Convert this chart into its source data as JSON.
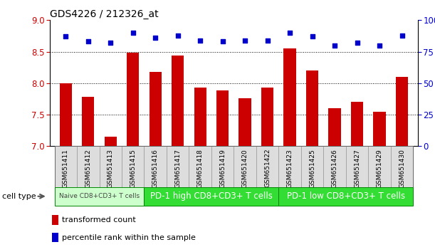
{
  "title": "GDS4226 / 212326_at",
  "samples": [
    "GSM651411",
    "GSM651412",
    "GSM651413",
    "GSM651415",
    "GSM651416",
    "GSM651417",
    "GSM651418",
    "GSM651419",
    "GSM651420",
    "GSM651422",
    "GSM651423",
    "GSM651425",
    "GSM651426",
    "GSM651427",
    "GSM651429",
    "GSM651430"
  ],
  "bar_values": [
    8.0,
    7.78,
    7.15,
    8.48,
    8.18,
    8.44,
    7.93,
    7.88,
    7.76,
    7.93,
    8.55,
    8.2,
    7.6,
    7.7,
    7.55,
    8.1
  ],
  "dot_values": [
    87,
    83,
    82,
    90,
    86,
    88,
    84,
    83,
    84,
    84,
    90,
    87,
    80,
    82,
    80,
    88
  ],
  "ylim_left": [
    7.0,
    9.0
  ],
  "ylim_right": [
    0,
    100
  ],
  "yticks_left": [
    7.0,
    7.5,
    8.0,
    8.5,
    9.0
  ],
  "yticks_right": [
    0,
    25,
    50,
    75,
    100
  ],
  "bar_color": "#cc0000",
  "dot_color": "#0000cc",
  "bar_width": 0.55,
  "grid_values": [
    7.5,
    8.0,
    8.5
  ],
  "cell_type_groups": [
    {
      "label": "Naive CD8+CD3+ T cells",
      "start": 0,
      "end": 4,
      "color": "#ccffcc",
      "text_color": "#444444",
      "font_size": 6.5
    },
    {
      "label": "PD-1 high CD8+CD3+ T cells",
      "start": 4,
      "end": 10,
      "color": "#33dd33",
      "text_color": "#ffffff",
      "font_size": 8.5
    },
    {
      "label": "PD-1 low CD8+CD3+ T cells",
      "start": 10,
      "end": 16,
      "color": "#33dd33",
      "text_color": "#ffffff",
      "font_size": 8.5
    }
  ],
  "legend_bar_label": "transformed count",
  "legend_dot_label": "percentile rank within the sample",
  "cell_type_label": "cell type",
  "tick_label_color_left": "#cc0000",
  "tick_label_color_right": "#0000cc",
  "sample_box_color": "#dddddd",
  "sample_box_edge": "#999999"
}
